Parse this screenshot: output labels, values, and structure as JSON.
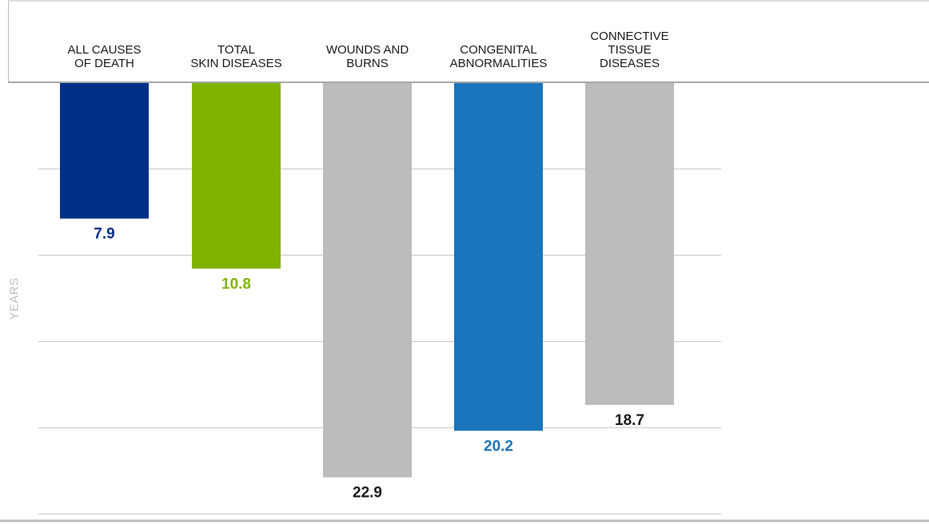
{
  "chart_data": {
    "type": "bar",
    "orientation": "hanging-down",
    "categories": [
      "ALL CAUSES\nOF DEATH",
      "TOTAL\nSKIN DISEASES",
      "WOUNDS AND\nBURNS",
      "CONGENITAL\nABNORMALITIES",
      "CONNECTIVE\nTISSUE\nDISEASES"
    ],
    "values": [
      7.9,
      10.8,
      22.9,
      20.2,
      18.7
    ],
    "value_labels": [
      "7.9",
      "10.8",
      "22.9",
      "20.2",
      "18.7"
    ],
    "colors": [
      "#002f87",
      "#7fb300",
      "#bcbcbe",
      "#1b75bc",
      "#bcbcbe"
    ],
    "label_colors": [
      "#002f87",
      "#7fb300",
      "#1a1a1a",
      "#1b75bc",
      "#1a1a1a"
    ],
    "ylabel": "YEARS",
    "ylim": [
      0,
      25
    ],
    "grid": true,
    "grid_step": 5
  }
}
